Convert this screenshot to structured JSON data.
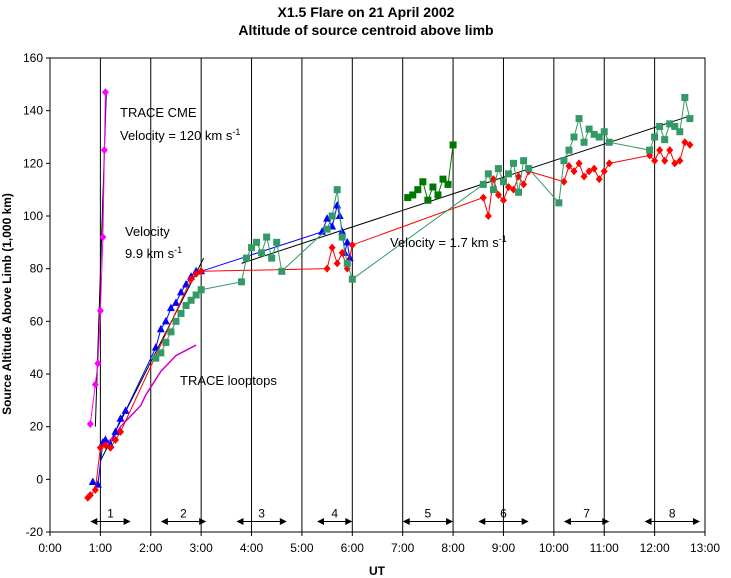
{
  "chart_data": {
    "type": "scatter",
    "title": "X1.5 Flare on 21 April 2002",
    "subtitle": "Altitude of source centroid above limb",
    "xlabel": "UT",
    "ylabel": "Source Altitude Above Limb (1,000 km)",
    "xlim": [
      0,
      13
    ],
    "ylim": [
      -20,
      160
    ],
    "x_unit": "hours UT",
    "xticks": [
      {
        "value": 0,
        "label": "0:00"
      },
      {
        "value": 1,
        "label": "1:00"
      },
      {
        "value": 2,
        "label": "2:00"
      },
      {
        "value": 3,
        "label": "3:00"
      },
      {
        "value": 4,
        "label": "4:00"
      },
      {
        "value": 5,
        "label": "5:00"
      },
      {
        "value": 6,
        "label": "6:00"
      },
      {
        "value": 7,
        "label": "7:00"
      },
      {
        "value": 8,
        "label": "8:00"
      },
      {
        "value": 9,
        "label": "9:00"
      },
      {
        "value": 10,
        "label": "10:00"
      },
      {
        "value": 11,
        "label": "11:00"
      },
      {
        "value": 12,
        "label": "12:00"
      },
      {
        "value": 13,
        "label": "13:00"
      }
    ],
    "yticks": [
      -20,
      0,
      20,
      40,
      60,
      80,
      100,
      120,
      140,
      160
    ],
    "grid": {
      "vertical": true,
      "horizontal": false
    },
    "series": [
      {
        "name": "TRACE CME",
        "color": "#ff00ff",
        "marker": "diamond",
        "connected": true,
        "x": [
          0.8,
          0.9,
          0.95,
          1.0,
          1.05,
          1.08,
          1.1
        ],
        "y": [
          21,
          36,
          44,
          64,
          92,
          125,
          147
        ]
      },
      {
        "name": "TRACE looptops",
        "color": "#cc00cc",
        "marker": "none",
        "connected": true,
        "x": [
          1.0,
          1.1,
          1.2,
          1.3,
          1.4,
          1.5,
          1.6,
          1.7,
          1.8,
          1.9,
          2.0,
          2.1,
          2.2,
          2.3,
          2.4,
          2.5,
          2.6,
          2.7,
          2.8,
          2.9
        ],
        "y": [
          12,
          14,
          15,
          17,
          20,
          22,
          24,
          26,
          28,
          32,
          35,
          38,
          41,
          43,
          45,
          47,
          48,
          49,
          50,
          51
        ]
      },
      {
        "color": "#0000ff",
        "marker": "triangle",
        "connected": true,
        "x": [
          0.85,
          0.95,
          1.05,
          1.1,
          1.2,
          1.3,
          1.4,
          1.5,
          2.1,
          2.2,
          2.3,
          2.4,
          2.5,
          2.6,
          2.7,
          2.8,
          2.9,
          3.0,
          5.4,
          5.5,
          5.6,
          5.7,
          5.75,
          5.8,
          5.85,
          5.9,
          5.95
        ],
        "y": [
          -1,
          -2,
          14,
          15,
          13,
          18,
          23,
          26,
          50,
          57,
          60,
          65,
          67,
          71,
          74,
          77,
          79,
          79,
          94,
          99,
          96,
          104,
          100,
          94,
          86,
          90,
          84
        ]
      },
      {
        "color": "#ff0000",
        "marker": "diamond",
        "connected": true,
        "x": [
          0.75,
          0.8,
          0.9,
          1.0,
          1.1,
          1.2,
          1.3,
          1.4,
          2.8,
          2.9,
          3.0,
          5.5,
          5.6,
          5.7,
          5.8,
          5.9,
          6.0,
          8.6,
          8.7,
          8.8,
          8.9,
          9.0,
          9.1,
          9.2,
          9.3,
          9.4,
          9.5,
          10.2,
          10.3,
          10.4,
          10.5,
          10.6,
          10.7,
          10.8,
          10.9,
          11.0,
          11.1,
          11.9,
          12.0,
          12.1,
          12.2,
          12.3,
          12.4,
          12.5,
          12.6,
          12.7
        ],
        "y": [
          -7,
          -6,
          -4,
          12,
          13,
          12,
          15,
          18,
          76,
          78,
          79,
          80,
          88,
          82,
          86,
          80,
          89,
          107,
          100,
          114,
          108,
          106,
          111,
          110,
          115,
          112,
          117,
          113,
          119,
          117,
          120,
          115,
          117,
          118,
          114,
          117,
          120,
          123,
          121,
          125,
          121,
          125,
          120,
          121,
          128,
          127
        ]
      },
      {
        "color": "#339966",
        "marker": "square",
        "connected": true,
        "x": [
          2.1,
          2.2,
          2.3,
          2.4,
          2.5,
          2.6,
          2.7,
          2.8,
          2.9,
          3.0,
          3.8,
          3.9,
          4.0,
          4.1,
          4.2,
          4.3,
          4.4,
          4.5,
          4.6,
          5.5,
          5.6,
          5.7,
          5.8,
          5.9,
          6.0,
          8.6,
          8.7,
          8.8,
          8.9,
          9.0,
          9.1,
          9.2,
          9.3,
          9.4,
          9.5,
          10.1,
          10.2,
          10.3,
          10.4,
          10.5,
          10.6,
          10.7,
          10.8,
          10.9,
          11.0,
          11.1,
          11.9,
          12.0,
          12.1,
          12.2,
          12.3,
          12.4,
          12.5,
          12.6,
          12.7
        ],
        "y": [
          46,
          48,
          52,
          56,
          60,
          63,
          66,
          68,
          70,
          72,
          75,
          84,
          88,
          90,
          86,
          92,
          84,
          90,
          79,
          95,
          100,
          110,
          92,
          82,
          76,
          112,
          116,
          110,
          118,
          113,
          116,
          120,
          109,
          121,
          118,
          105,
          121,
          125,
          130,
          137,
          128,
          133,
          131,
          130,
          132,
          128,
          125,
          130,
          134,
          129,
          135,
          134,
          132,
          145,
          137
        ]
      },
      {
        "color": "#007700",
        "marker": "square",
        "connected": true,
        "x": [
          7.1,
          7.2,
          7.3,
          7.4,
          7.5,
          7.6,
          7.7,
          7.8,
          7.9,
          8.0
        ],
        "y": [
          107,
          108,
          110,
          113,
          106,
          111,
          108,
          114,
          112,
          127
        ]
      }
    ],
    "fit_lines": [
      {
        "label": "Velocity",
        "value": "9.9 km s",
        "sup": "-1",
        "x": [
          1.0,
          3.05
        ],
        "y": [
          7,
          84
        ]
      },
      {
        "label": "Velocity = 1.7 km s",
        "sup": "-1",
        "x": [
          3.8,
          12.7
        ],
        "y": [
          82,
          138
        ]
      },
      {
        "label": "Velocity = 120 km s",
        "sup": "-1",
        "x": [
          0.9,
          1.12
        ],
        "y": [
          20,
          148
        ]
      }
    ],
    "annotations": {
      "trace_cme": "TRACE CME",
      "velocity_cme": "Velocity = 120 km s",
      "velocity_fast_line1": "Velocity",
      "velocity_fast_line2": "9.9 km s",
      "velocity_slow": "Velocity = 1.7 km s",
      "trace_looptops": "TRACE looptops",
      "sup": "-1"
    },
    "intervals": [
      {
        "label": "1",
        "x": [
          0.8,
          1.6
        ]
      },
      {
        "label": "2",
        "x": [
          2.2,
          3.1
        ]
      },
      {
        "label": "3",
        "x": [
          3.7,
          4.7
        ]
      },
      {
        "label": "4",
        "x": [
          5.3,
          6.0
        ]
      },
      {
        "label": "5",
        "x": [
          7.0,
          8.0
        ]
      },
      {
        "label": "6",
        "x": [
          8.5,
          9.5
        ]
      },
      {
        "label": "7",
        "x": [
          10.2,
          11.1
        ]
      },
      {
        "label": "8",
        "x": [
          11.8,
          12.9
        ]
      }
    ]
  }
}
